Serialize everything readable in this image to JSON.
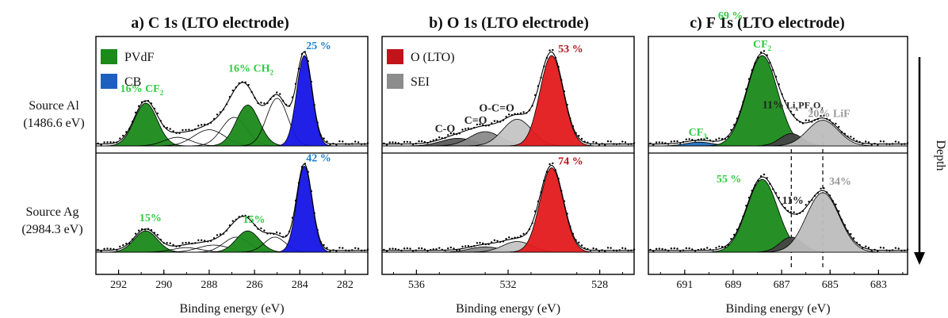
{
  "figure": {
    "depth_label": "Depth",
    "source_labels": [
      {
        "name": "Source Al",
        "energy": "(1486.6 eV)"
      },
      {
        "name": "Source Ag",
        "energy": "(2984.3 eV)"
      }
    ]
  },
  "chart_data": [
    {
      "type": "line",
      "title": "a) C 1s (LTO electrode)",
      "xlabel": "Binding  energy  (eV)",
      "ylabel": "",
      "xlim": [
        293,
        281
      ],
      "xticks": [
        292,
        290,
        288,
        286,
        284,
        282
      ],
      "legend": [
        {
          "label": "PVdF",
          "color": "#1a8a1a"
        },
        {
          "label": "CB",
          "color": "#1f5fbf"
        }
      ],
      "rows": [
        {
          "peaks": [
            {
              "center": 290.8,
              "height": 0.45,
              "fwhm": 1.2,
              "color": "#1a8a1a",
              "label": "16% CF",
              "label_sub": "2",
              "label_color": "#2ecc40"
            },
            {
              "center": 289.4,
              "height": 0.09,
              "fwhm": 1.4,
              "color": "none"
            },
            {
              "center": 288.0,
              "height": 0.17,
              "fwhm": 1.6,
              "color": "none"
            },
            {
              "center": 286.9,
              "height": 0.3,
              "fwhm": 1.3,
              "color": "none"
            },
            {
              "center": 286.3,
              "height": 0.43,
              "fwhm": 1.2,
              "color": "#1a8a1a",
              "label": "16% CH",
              "label_sub": "2",
              "label_color": "#2ecc40"
            },
            {
              "center": 285.0,
              "height": 0.5,
              "fwhm": 1.1,
              "color": "none"
            },
            {
              "center": 283.8,
              "height": 0.95,
              "fwhm": 0.8,
              "color": "#1414e6",
              "label": "25 %",
              "label_color": "#1f7fc8"
            }
          ]
        },
        {
          "peaks": [
            {
              "center": 290.8,
              "height": 0.24,
              "fwhm": 1.2,
              "color": "#1a8a1a",
              "label": "15%",
              "label_color": "#2ecc40"
            },
            {
              "center": 289.0,
              "height": 0.05,
              "fwhm": 1.5,
              "color": "none"
            },
            {
              "center": 287.8,
              "height": 0.08,
              "fwhm": 1.6,
              "color": "none"
            },
            {
              "center": 286.8,
              "height": 0.17,
              "fwhm": 1.3,
              "color": "none"
            },
            {
              "center": 286.3,
              "height": 0.24,
              "fwhm": 1.2,
              "color": "#1a8a1a",
              "label": "15%",
              "label_color": "#2ecc40"
            },
            {
              "center": 285.1,
              "height": 0.17,
              "fwhm": 1.1,
              "color": "none"
            },
            {
              "center": 283.8,
              "height": 0.97,
              "fwhm": 0.8,
              "color": "#1414e6",
              "label": "42 %",
              "label_color": "#1f7fc8"
            }
          ]
        }
      ]
    },
    {
      "type": "line",
      "title": "b) O 1s (LTO electrode)",
      "xlabel": "Binding  energy  (eV)",
      "ylabel": "",
      "xlim": [
        537.5,
        526.5
      ],
      "xticks": [
        536,
        532,
        528
      ],
      "legend": [
        {
          "label": "O (LTO)",
          "color": "#c0141a"
        },
        {
          "label": "SEI",
          "color": "#8c8c8c"
        }
      ],
      "rows": [
        {
          "peaks": [
            {
              "center": 534.2,
              "height": 0.08,
              "fwhm": 1.7,
              "color": "#5a5a5a",
              "label": "C-O",
              "label_color": "#222222"
            },
            {
              "center": 533.0,
              "height": 0.15,
              "fwhm": 1.6,
              "color": "#8a8a8a",
              "label": "C=O",
              "label_color": "#222222"
            },
            {
              "center": 531.6,
              "height": 0.28,
              "fwhm": 1.5,
              "color": "#c4c4c4",
              "label": "O-C=O",
              "label_color": "#222222"
            },
            {
              "center": 530.1,
              "height": 0.95,
              "fwhm": 1.2,
              "color": "#e31a1c",
              "label": "53 %",
              "label_color": "#c0141a"
            }
          ]
        },
        {
          "peaks": [
            {
              "center": 533.0,
              "height": 0.06,
              "fwhm": 1.6,
              "color": "#8a8a8a"
            },
            {
              "center": 531.6,
              "height": 0.12,
              "fwhm": 1.5,
              "color": "#c4c4c4"
            },
            {
              "center": 530.1,
              "height": 0.95,
              "fwhm": 1.2,
              "color": "#e31a1c",
              "label": "74 %",
              "label_color": "#c0141a"
            }
          ]
        }
      ]
    },
    {
      "type": "line",
      "title": "c) F 1s (LTO electrode)",
      "xlabel": "Binding  energy  (eV)",
      "ylabel": "",
      "xlim": [
        692.5,
        681.8
      ],
      "xticks": [
        691,
        689,
        687,
        685,
        683
      ],
      "dashed_lines": [
        686.6,
        685.3
      ],
      "rows": [
        {
          "peaks": [
            {
              "center": 690.4,
              "height": 0.04,
              "fwhm": 1.3,
              "color": "#1f6fbf",
              "label": "CF",
              "label_sub": "3",
              "label_color": "#2ecc40"
            },
            {
              "center": 687.8,
              "height": 0.95,
              "fwhm": 1.5,
              "color": "#1a8a1a",
              "label": "69 %",
              "label_color": "#2ecc40",
              "label2": "CF",
              "label2_sub": "2"
            },
            {
              "center": 686.6,
              "height": 0.13,
              "fwhm": 1.1,
              "color": "#444444",
              "label": "11%",
              "label_tail": "Li",
              "label_tail2": "PF",
              "label_tail3": "O",
              "label_sub": "x",
              "label_sub2": "y",
              "label_sub3": "z",
              "label_color": "#222222"
            },
            {
              "center": 685.3,
              "height": 0.27,
              "fwhm": 1.5,
              "color": "#bdbdbd",
              "label": "20% LiF",
              "label_color": "#9a9a9a"
            }
          ]
        },
        {
          "peaks": [
            {
              "center": 687.8,
              "height": 0.82,
              "fwhm": 1.5,
              "color": "#1a8a1a",
              "label": "55 %",
              "label_color": "#2ecc40"
            },
            {
              "center": 686.6,
              "height": 0.17,
              "fwhm": 1.1,
              "color": "#444444",
              "label": "11%",
              "label_color": "#222222"
            },
            {
              "center": 685.3,
              "height": 0.67,
              "fwhm": 1.6,
              "color": "#bdbdbd",
              "label": "34%",
              "label_color": "#9a9a9a"
            }
          ]
        }
      ]
    }
  ]
}
